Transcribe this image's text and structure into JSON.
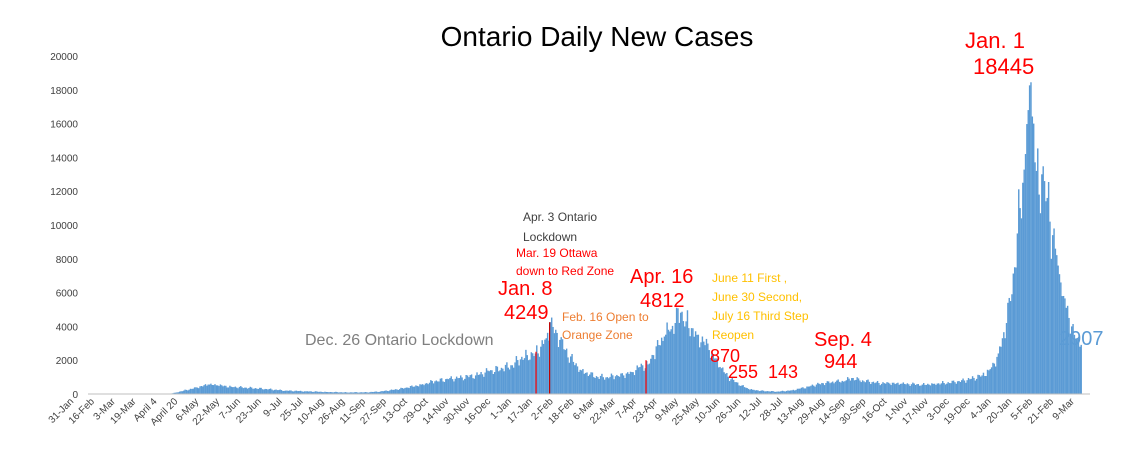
{
  "chart_data": {
    "type": "bar",
    "title": "Ontario Daily New Cases",
    "xlabel": "",
    "ylabel": "",
    "ylim": [
      0,
      20000
    ],
    "yticks": [
      0,
      2000,
      4000,
      6000,
      8000,
      10000,
      12000,
      14000,
      16000,
      18000,
      20000
    ],
    "grid": false,
    "legend": "none",
    "bar_color": "#5b9bd5",
    "xtick_labels": [
      "31-Jan",
      "16-Feb",
      "3-Mar",
      "19-Mar",
      "April 4",
      "April 20",
      "6-May",
      "22-May",
      "7-Jun",
      "23-Jun",
      "9-Jul",
      "25-Jul",
      "10-Aug",
      "26-Aug",
      "11-Sep",
      "27-Sep",
      "13-Oct",
      "29-Oct",
      "14-Nov",
      "30-Nov",
      "16-Dec",
      "1-Jan",
      "17-Jan",
      "2-Feb",
      "18-Feb",
      "6-Mar",
      "22-Mar",
      "7-Apr",
      "23-Apr",
      "9-May",
      "25-May",
      "10-Jun",
      "26-Jun",
      "12-Jul",
      "28-Jul",
      "13-Aug",
      "29-Aug",
      "14-Sep",
      "30-Sep",
      "16-Oct",
      "1-Nov",
      "17-Nov",
      "3-Dec",
      "19-Dec",
      "4-Jan",
      "20-Jan",
      "5-Feb",
      "21-Feb",
      "9-Mar"
    ],
    "series_points": [
      [
        0,
        0
      ],
      [
        48,
        0
      ],
      [
        60,
        20
      ],
      [
        64,
        80
      ],
      [
        70,
        200
      ],
      [
        80,
        380
      ],
      [
        88,
        560
      ],
      [
        95,
        510
      ],
      [
        105,
        430
      ],
      [
        115,
        380
      ],
      [
        130,
        300
      ],
      [
        145,
        200
      ],
      [
        160,
        160
      ],
      [
        175,
        120
      ],
      [
        190,
        95
      ],
      [
        205,
        100
      ],
      [
        215,
        150
      ],
      [
        225,
        250
      ],
      [
        235,
        380
      ],
      [
        245,
        560
      ],
      [
        255,
        750
      ],
      [
        265,
        880
      ],
      [
        275,
        980
      ],
      [
        285,
        1100
      ],
      [
        295,
        1350
      ],
      [
        305,
        1500
      ],
      [
        312,
        1700
      ],
      [
        318,
        2050
      ],
      [
        323,
        2300
      ],
      [
        329,
        2400
      ],
      [
        333,
        2800
      ],
      [
        337,
        3300
      ],
      [
        340,
        4249
      ],
      [
        343,
        3600
      ],
      [
        347,
        3200
      ],
      [
        351,
        2600
      ],
      [
        357,
        1900
      ],
      [
        363,
        1400
      ],
      [
        369,
        1150
      ],
      [
        375,
        1000
      ],
      [
        382,
        1000
      ],
      [
        388,
        1050
      ],
      [
        394,
        1100
      ],
      [
        400,
        1300
      ],
      [
        406,
        1600
      ],
      [
        412,
        1750
      ],
      [
        416,
        2300
      ],
      [
        420,
        2900
      ],
      [
        424,
        3400
      ],
      [
        428,
        3700
      ],
      [
        432,
        4200
      ],
      [
        436,
        4812
      ],
      [
        440,
        4300
      ],
      [
        444,
        3900
      ],
      [
        448,
        3500
      ],
      [
        453,
        3100
      ],
      [
        457,
        2600
      ],
      [
        461,
        2100
      ],
      [
        465,
        1600
      ],
      [
        469,
        1200
      ],
      [
        473,
        870
      ],
      [
        477,
        700
      ],
      [
        481,
        500
      ],
      [
        485,
        350
      ],
      [
        489,
        255
      ],
      [
        495,
        190
      ],
      [
        501,
        160
      ],
      [
        507,
        143
      ],
      [
        512,
        170
      ],
      [
        518,
        220
      ],
      [
        524,
        320
      ],
      [
        530,
        440
      ],
      [
        536,
        560
      ],
      [
        543,
        650
      ],
      [
        550,
        720
      ],
      [
        557,
        760
      ],
      [
        562,
        944
      ],
      [
        568,
        800
      ],
      [
        575,
        720
      ],
      [
        582,
        650
      ],
      [
        590,
        620
      ],
      [
        598,
        600
      ],
      [
        606,
        580
      ],
      [
        614,
        560
      ],
      [
        622,
        600
      ],
      [
        630,
        650
      ],
      [
        638,
        700
      ],
      [
        645,
        800
      ],
      [
        652,
        950
      ],
      [
        658,
        1100
      ],
      [
        663,
        1400
      ],
      [
        667,
        1800
      ],
      [
        670,
        2400
      ],
      [
        673,
        3300
      ],
      [
        676,
        4200
      ],
      [
        679,
        5500
      ],
      [
        682,
        7500
      ],
      [
        684,
        9500
      ],
      [
        686,
        11000
      ],
      [
        688,
        12500
      ],
      [
        690,
        14200
      ],
      [
        692,
        16800
      ],
      [
        694,
        18445
      ],
      [
        696,
        16000
      ],
      [
        698,
        13200
      ],
      [
        700,
        11800
      ],
      [
        702,
        13000
      ],
      [
        704,
        12600
      ],
      [
        706,
        11600
      ],
      [
        708,
        10200
      ],
      [
        710,
        9400
      ],
      [
        712,
        8600
      ],
      [
        714,
        7600
      ],
      [
        716,
        6600
      ],
      [
        718,
        5800
      ],
      [
        720,
        5100
      ],
      [
        722,
        4500
      ],
      [
        724,
        4000
      ],
      [
        726,
        3500
      ],
      [
        728,
        3300
      ],
      [
        730,
        2800
      ],
      [
        731,
        2907
      ]
    ],
    "annotations": [
      {
        "lines": [
          "Dec. 26 Ontario Lockdown"
        ],
        "color": "#7f7f7f",
        "size": 16
      },
      {
        "lines": [
          "Jan. 8",
          "4249"
        ],
        "color": "#ff0000",
        "size": 20
      },
      {
        "lines": [
          "Apr. 3 Ontario",
          "Lockdown"
        ],
        "color": "#404040",
        "size": 12
      },
      {
        "lines": [
          "Mar. 19 Ottawa",
          "down to Red Zone"
        ],
        "color": "#ff0000",
        "size": 12
      },
      {
        "lines": [
          "Feb. 16 Open to",
          "Orange Zone"
        ],
        "color": "#ed7d31",
        "size": 12
      },
      {
        "lines": [
          "Apr. 16",
          "4812"
        ],
        "color": "#ff0000",
        "size": 20
      },
      {
        "lines": [
          "June 11 First ,",
          "June 30 Second,",
          "July 16 Third Step",
          "Reopen"
        ],
        "color": "#ffc000",
        "size": 12
      },
      {
        "lines": [
          "870"
        ],
        "color": "#ff0000",
        "size": 18
      },
      {
        "lines": [
          "255"
        ],
        "color": "#ff0000",
        "size": 18
      },
      {
        "lines": [
          "143"
        ],
        "color": "#ff0000",
        "size": 18
      },
      {
        "lines": [
          "Sep. 4",
          "944"
        ],
        "color": "#ff0000",
        "size": 20
      },
      {
        "lines": [
          "Jan. 1",
          "18445"
        ],
        "color": "#ff0000",
        "size": 22
      },
      {
        "lines": [
          "2907"
        ],
        "color": "#5b9bd5",
        "size": 20
      }
    ]
  }
}
